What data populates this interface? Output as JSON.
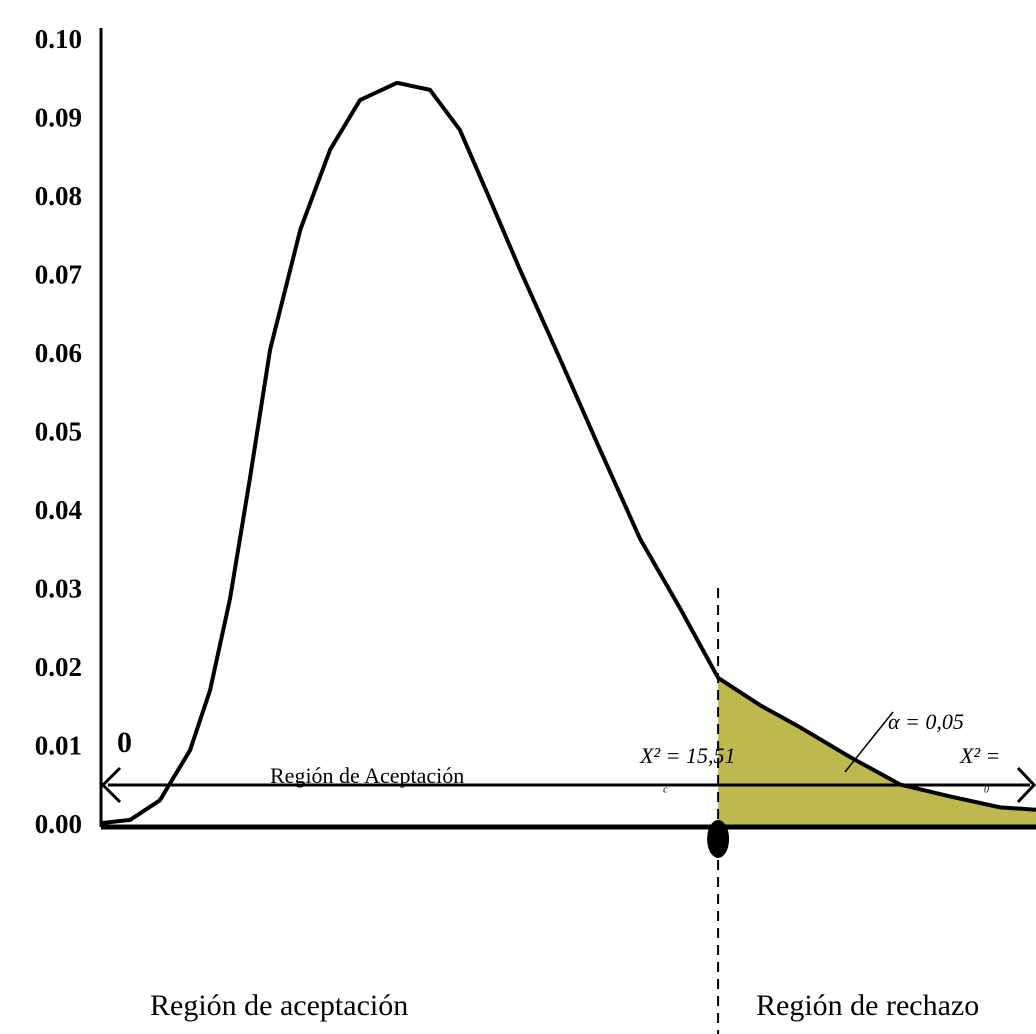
{
  "chart_data": {
    "type": "line",
    "x": [
      0,
      0.73,
      1.48,
      2.24,
      2.74,
      3.24,
      3.74,
      4.25,
      5.01,
      5.76,
      6.51,
      7.44,
      8.27,
      9.02,
      9.78,
      10.53,
      11.54,
      12.54,
      13.55,
      14.56,
      15.51,
      16.57,
      17.57,
      18.83,
      20.09,
      21.34,
      22.6,
      23.5
    ],
    "values": [
      0.0005,
      0.0009,
      0.0034,
      0.0098,
      0.0174,
      0.029,
      0.0443,
      0.0608,
      0.0761,
      0.0863,
      0.0926,
      0.0948,
      0.0939,
      0.0888,
      0.0799,
      0.071,
      0.0596,
      0.0481,
      0.0367,
      0.0278,
      0.019,
      0.0155,
      0.0127,
      0.0089,
      0.0054,
      0.0039,
      0.0025,
      0.0022
    ],
    "color": "#000000",
    "shade_color": "#bdb94e",
    "xlim": [
      0,
      23.5
    ],
    "ylim": [
      0,
      0.1
    ],
    "yticks": [
      {
        "value": 0,
        "label": "0.00"
      },
      {
        "value": 0.01,
        "label": "0.01"
      },
      {
        "value": 0.02,
        "label": "0.02"
      },
      {
        "value": 0.03,
        "label": "0.03"
      },
      {
        "value": 0.04,
        "label": "0.04"
      },
      {
        "value": 0.05,
        "label": "0.05"
      },
      {
        "value": 0.06,
        "label": "0.06"
      },
      {
        "value": 0.07,
        "label": "0.07"
      },
      {
        "value": 0.08,
        "label": "0.08"
      },
      {
        "value": 0.09,
        "label": "0.09"
      },
      {
        "value": 0.1,
        "label": "0.10"
      }
    ],
    "critical_value": 15.51,
    "critical_label": "X² = 15,51",
    "critical_subscript": "c",
    "observed_label": "X² =",
    "observed_subscript": "0",
    "alpha_label": "α = 0,05",
    "region_label": "Región de Aceptación",
    "origin_label": "0",
    "acceptance_label": "Región de aceptación",
    "rejection_label": "Región de rechazo"
  }
}
